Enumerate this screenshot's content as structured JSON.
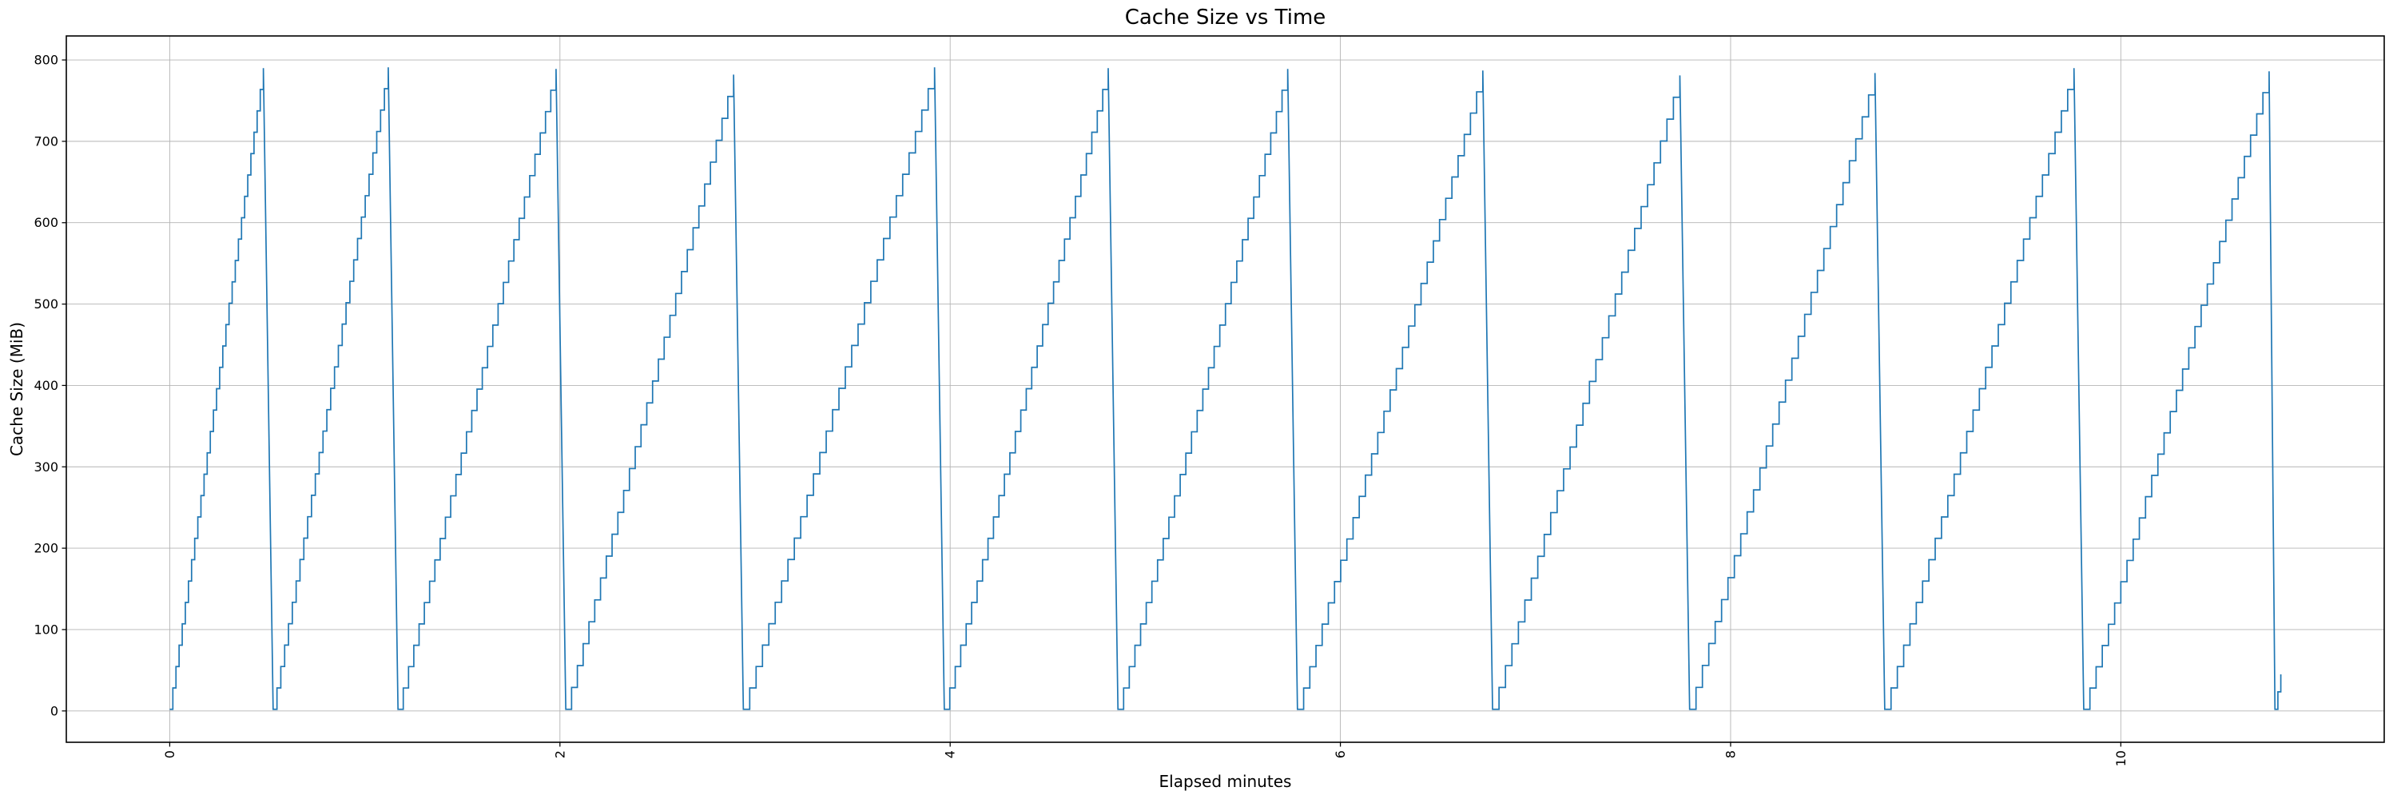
{
  "figure": {
    "background": "#ffffff"
  },
  "chart_data": {
    "type": "line",
    "title": "Cache Size vs Time",
    "xlabel": "Elapsed minutes",
    "ylabel": "Cache Size (MiB)",
    "legend": null,
    "grid": true,
    "grid_color": "#b4b4b4",
    "spine_color": "#000000",
    "line_color": "#1f77b4",
    "xlim": [
      -0.53,
      11.35
    ],
    "ylim": [
      -38.5,
      829.5
    ],
    "xticks": [
      0,
      2,
      4,
      6,
      8,
      10
    ],
    "xtick_labels": [
      "0",
      "2",
      "4",
      "6",
      "8",
      "10"
    ],
    "x_tick_rotation_deg": 90,
    "yticks": [
      0,
      100,
      200,
      300,
      400,
      500,
      600,
      700,
      800
    ],
    "ytick_labels": [
      "0",
      "100",
      "200",
      "300",
      "400",
      "500",
      "600",
      "700",
      "800"
    ],
    "pattern": "sawtooth: cache fills in ~27 MiB staircase steps to ~790 MiB, then evicts instantly to ~0; repeats ~every minute",
    "base_value": 2,
    "step_mib": 27,
    "drop_duration_min": 0.045,
    "series_end_min": 10.82,
    "cycles": [
      {
        "start": 0.0,
        "peak_time": 0.48,
        "peak": 790
      },
      {
        "start": 0.53,
        "peak_time": 1.12,
        "peak": 791
      },
      {
        "start": 1.17,
        "peak_time": 1.98,
        "peak": 789
      },
      {
        "start": 2.03,
        "peak_time": 2.89,
        "peak": 782
      },
      {
        "start": 2.94,
        "peak_time": 3.92,
        "peak": 791
      },
      {
        "start": 3.97,
        "peak_time": 4.81,
        "peak": 790
      },
      {
        "start": 4.86,
        "peak_time": 5.73,
        "peak": 789
      },
      {
        "start": 5.78,
        "peak_time": 6.73,
        "peak": 787
      },
      {
        "start": 6.78,
        "peak_time": 7.74,
        "peak": 781
      },
      {
        "start": 7.79,
        "peak_time": 8.74,
        "peak": 784
      },
      {
        "start": 8.79,
        "peak_time": 9.76,
        "peak": 790
      },
      {
        "start": 9.81,
        "peak_time": 10.76,
        "peak": 786
      },
      {
        "start": 10.79,
        "peak_time": 10.82,
        "peak": 45,
        "truncated": true
      }
    ]
  }
}
